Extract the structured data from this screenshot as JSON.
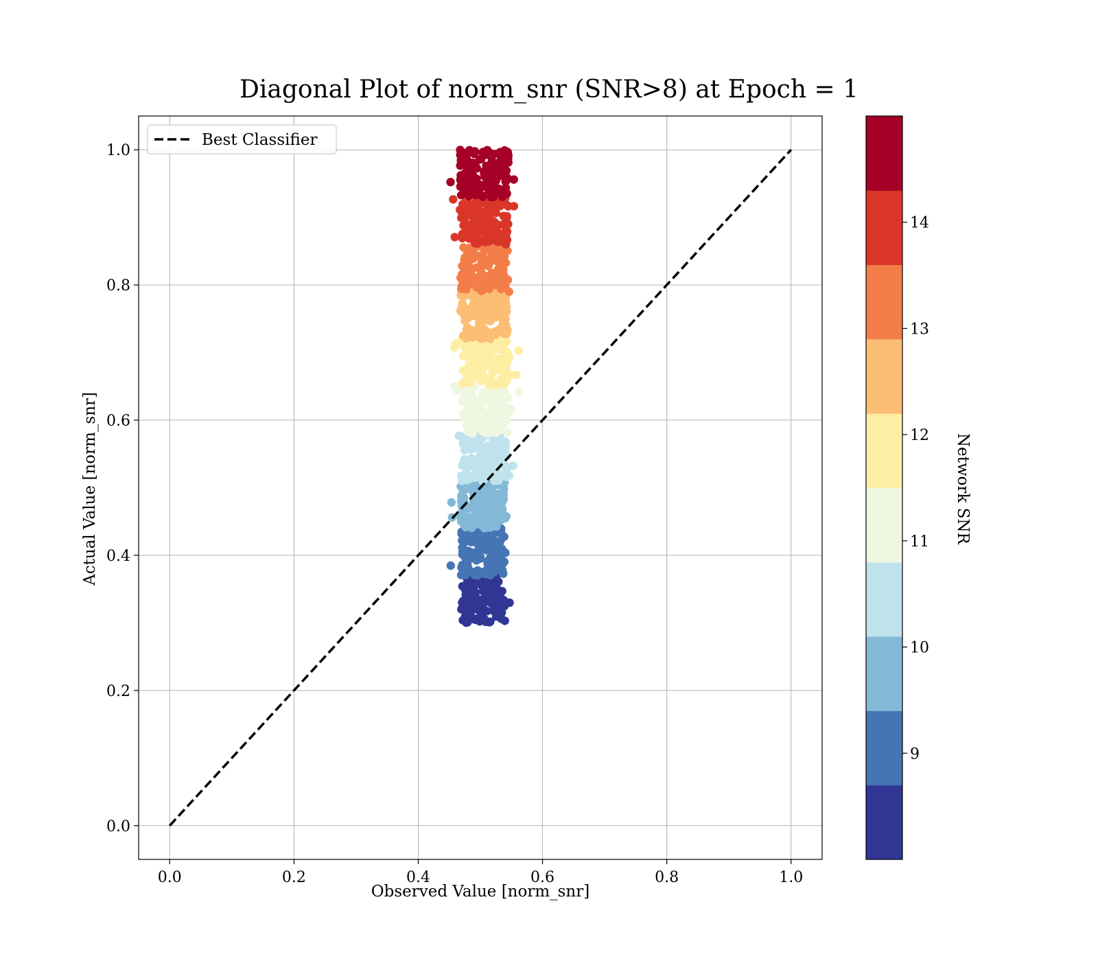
{
  "chart_data": {
    "type": "scatter",
    "title": "Diagonal Plot of norm_snr (SNR>8) at Epoch = 1",
    "xlabel": "Observed Value [norm_snr]",
    "ylabel": "Actual Value [norm_snr]",
    "xlim": [
      -0.05,
      1.05
    ],
    "ylim": [
      -0.05,
      1.05
    ],
    "x_ticks": [
      "0.0",
      "0.2",
      "0.4",
      "0.6",
      "0.8",
      "1.0"
    ],
    "y_ticks": [
      "0.0",
      "0.2",
      "0.4",
      "0.6",
      "0.8",
      "1.0"
    ],
    "grid": true,
    "legend": {
      "position": "top-left",
      "entries": [
        "Best Classifier"
      ]
    },
    "reference_line": {
      "name": "Best Classifier",
      "style": "dashed",
      "color": "#000000",
      "x": [
        0.0,
        1.0
      ],
      "y": [
        0.0,
        1.0
      ]
    },
    "colorbar": {
      "label": "Network SNR",
      "range": [
        8.0,
        15.0
      ],
      "ticks": [
        "9",
        "10",
        "11",
        "12",
        "13",
        "14"
      ],
      "colors": [
        "#313695",
        "#4575b4",
        "#83b8d7",
        "#c0e2ed",
        "#eef7e0",
        "#fdeea3",
        "#fcbd74",
        "#f47e4a",
        "#d93629",
        "#a50026"
      ]
    },
    "scatter_bands": [
      {
        "snr": 8.35,
        "y_min": 0.3,
        "y_max": 0.37,
        "x_center": 0.505,
        "x_half_width": 0.035
      },
      {
        "snr": 9.05,
        "y_min": 0.37,
        "y_max": 0.44,
        "x_center": 0.505,
        "x_half_width": 0.036
      },
      {
        "snr": 9.75,
        "y_min": 0.44,
        "y_max": 0.51,
        "x_center": 0.505,
        "x_half_width": 0.037
      },
      {
        "snr": 10.45,
        "y_min": 0.51,
        "y_max": 0.58,
        "x_center": 0.506,
        "x_half_width": 0.037
      },
      {
        "snr": 11.15,
        "y_min": 0.58,
        "y_max": 0.65,
        "x_center": 0.508,
        "x_half_width": 0.037
      },
      {
        "snr": 11.85,
        "y_min": 0.65,
        "y_max": 0.72,
        "x_center": 0.507,
        "x_half_width": 0.037
      },
      {
        "snr": 12.55,
        "y_min": 0.72,
        "y_max": 0.79,
        "x_center": 0.506,
        "x_half_width": 0.038
      },
      {
        "snr": 13.25,
        "y_min": 0.79,
        "y_max": 0.86,
        "x_center": 0.506,
        "x_half_width": 0.038
      },
      {
        "snr": 13.95,
        "y_min": 0.86,
        "y_max": 0.93,
        "x_center": 0.506,
        "x_half_width": 0.039
      },
      {
        "snr": 14.65,
        "y_min": 0.93,
        "y_max": 1.0,
        "x_center": 0.506,
        "x_half_width": 0.039
      }
    ]
  }
}
